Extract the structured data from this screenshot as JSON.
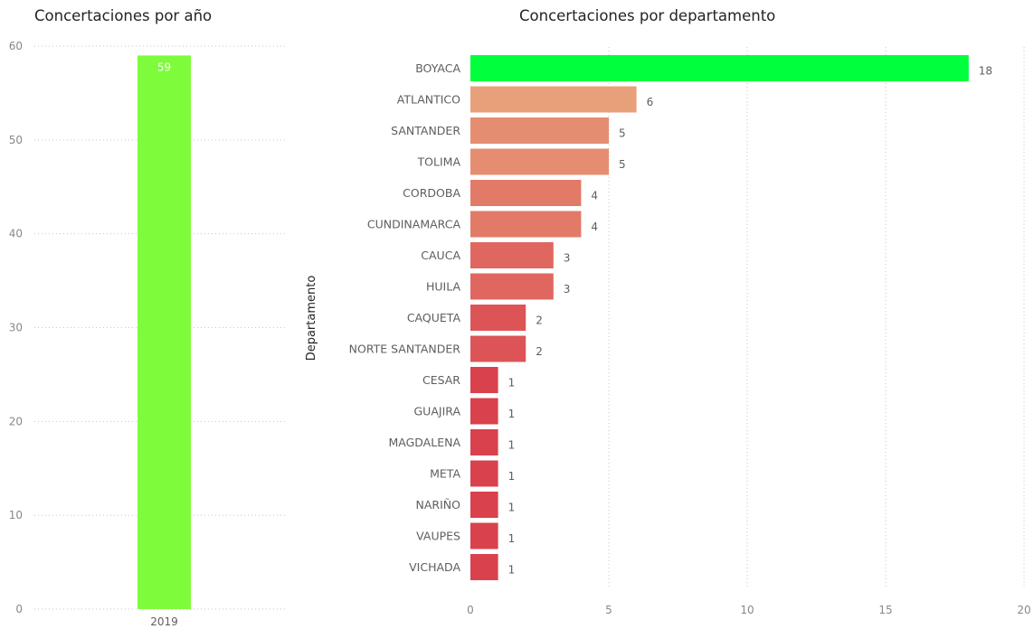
{
  "chart_data": [
    {
      "type": "bar",
      "orientation": "vertical",
      "title": "Concertaciones por año",
      "categories": [
        "2019"
      ],
      "values": [
        59
      ],
      "ylim": [
        0,
        60
      ],
      "yticks": [
        0,
        10,
        20,
        30,
        40,
        50,
        60
      ],
      "grid": true,
      "data_labels": true,
      "bar_color": "#7efc3c"
    },
    {
      "type": "bar",
      "orientation": "horizontal",
      "title": "Concertaciones por departamento",
      "ylabel": "Departamento",
      "categories": [
        "BOYACA",
        "ATLANTICO",
        "SANTANDER",
        "TOLIMA",
        "CORDOBA",
        "CUNDINAMARCA",
        "CAUCA",
        "HUILA",
        "CAQUETA",
        "NORTE SANTANDER",
        "CESAR",
        "GUAJIRA",
        "MAGDALENA",
        "META",
        "NARIÑO",
        "VAUPES",
        "VICHADA"
      ],
      "values": [
        18,
        6,
        5,
        5,
        4,
        4,
        3,
        3,
        2,
        2,
        1,
        1,
        1,
        1,
        1,
        1,
        1
      ],
      "xlim": [
        0,
        20
      ],
      "xticks": [
        0,
        5,
        10,
        15,
        20
      ],
      "grid": true,
      "data_labels": true,
      "highlight_color": "#00ff3c",
      "gradient_high": "#e8a07a",
      "gradient_low": "#d9414d"
    }
  ]
}
